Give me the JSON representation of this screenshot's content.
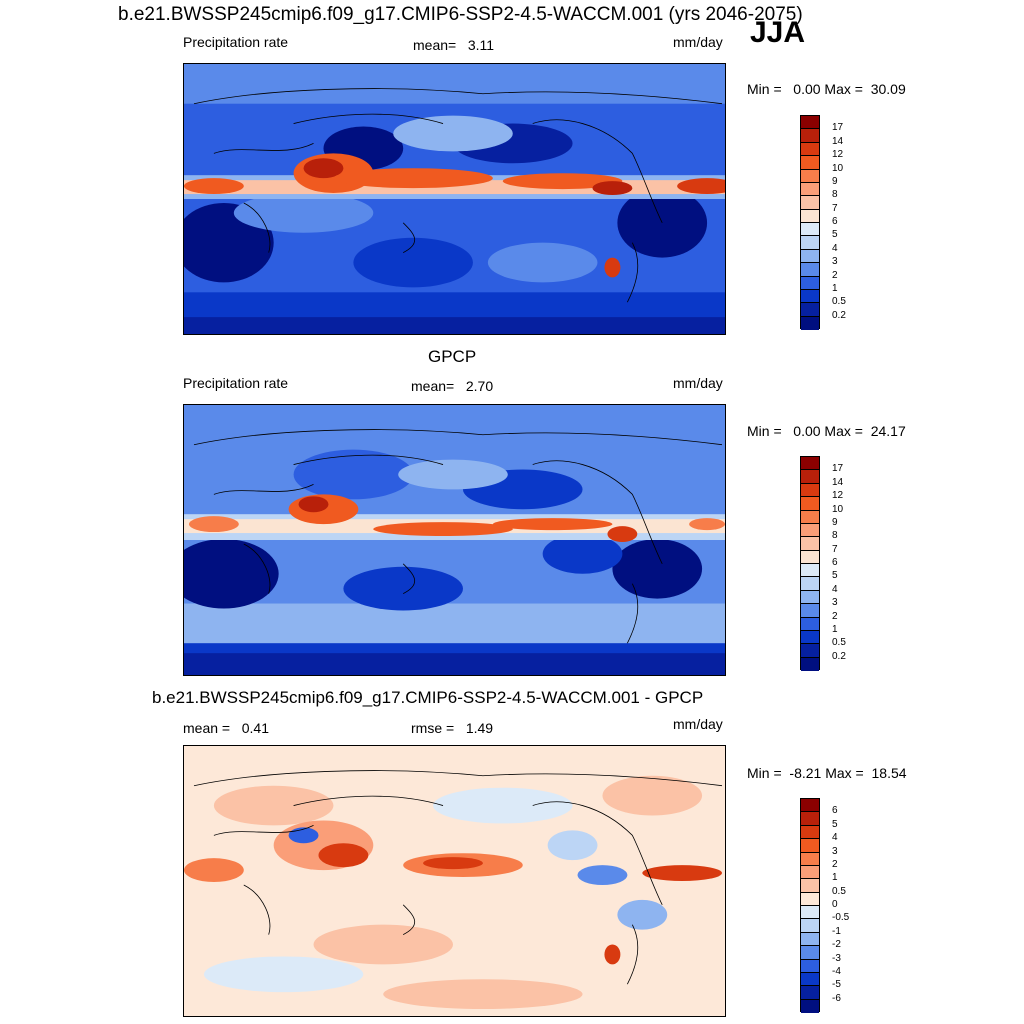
{
  "season": "JJA",
  "panels": [
    {
      "title": "b.e21.BWSSP245cmip6.f09_g17.CMIP6-SSP2-4.5-WACCM.001 (yrs 2046-2075)",
      "left_label": "Precipitation rate",
      "center_label": "mean=   3.11",
      "units": "mm/day",
      "minmax": "Min =   0.00 Max =  30.09",
      "map_name": "model-precip-map"
    },
    {
      "title": "GPCP",
      "left_label": "Precipitation rate",
      "center_label": "mean=   2.70",
      "units": "mm/day",
      "minmax": "Min =   0.00 Max =  24.17",
      "map_name": "gpcp-precip-map"
    },
    {
      "title": "b.e21.BWSSP245cmip6.f09_g17.CMIP6-SSP2-4.5-WACCM.001 - GPCP",
      "left_label": "mean =   0.41",
      "center_label": "rmse =   1.49",
      "units": "mm/day",
      "minmax": "Min =  -8.21 Max =  18.54",
      "map_name": "difference-map"
    }
  ],
  "colorbars": {
    "precip": {
      "labels": [
        "17",
        "14",
        "12",
        "10",
        "9",
        "8",
        "7",
        "6",
        "5",
        "4",
        "3",
        "2",
        "1",
        "0.5",
        "0.2"
      ],
      "colors": [
        "#8b0000",
        "#b8200a",
        "#d83a10",
        "#f05a20",
        "#f77d4a",
        "#fa9e78",
        "#fbc2a6",
        "#fbe4d2",
        "#dceaf8",
        "#bcd5f5",
        "#8eb4f0",
        "#5a8aea",
        "#2d5ee0",
        "#0a38c8",
        "#0620a0",
        "#000f80"
      ]
    },
    "diff": {
      "labels": [
        "6",
        "5",
        "4",
        "3",
        "2",
        "1",
        "0.5",
        "0",
        "-0.5",
        "-1",
        "-2",
        "-3",
        "-4",
        "-5",
        "-6"
      ],
      "colors": [
        "#8b0000",
        "#b8200a",
        "#d83a10",
        "#f05a20",
        "#f77d4a",
        "#fa9e78",
        "#fbc2a6",
        "#fde8d8",
        "#dceaf8",
        "#bcd5f5",
        "#8eb4f0",
        "#5a8aea",
        "#2d5ee0",
        "#0a38c8",
        "#0620a0",
        "#000f80"
      ]
    }
  }
}
